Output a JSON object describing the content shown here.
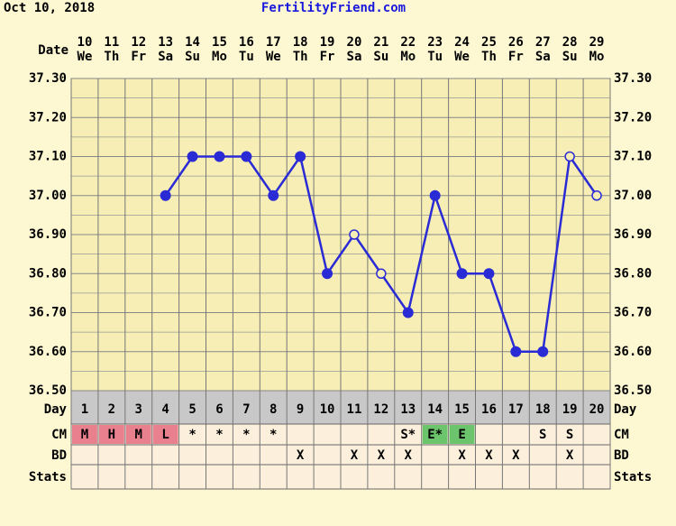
{
  "header": {
    "date": "Oct 10, 2018",
    "site": "FertilityFriend.com"
  },
  "chart_data": {
    "type": "line",
    "x_label": "Date",
    "categories": [
      "10",
      "11",
      "12",
      "13",
      "14",
      "15",
      "16",
      "17",
      "18",
      "19",
      "20",
      "21",
      "22",
      "23",
      "24",
      "25",
      "26",
      "27",
      "28",
      "29"
    ],
    "weekdays": [
      "We",
      "Th",
      "Fr",
      "Sa",
      "Su",
      "Mo",
      "Tu",
      "We",
      "Th",
      "Fr",
      "Sa",
      "Su",
      "Mo",
      "Tu",
      "We",
      "Th",
      "Fr",
      "Sa",
      "Su",
      "Mo"
    ],
    "series": [
      {
        "color": "#2b2bd6",
        "values": [
          null,
          null,
          null,
          37.0,
          37.1,
          37.1,
          37.1,
          37.0,
          37.1,
          36.8,
          36.9,
          36.8,
          36.7,
          37.0,
          36.8,
          36.8,
          36.6,
          36.6,
          37.1,
          37.0
        ],
        "markers": [
          null,
          null,
          null,
          "filled",
          "filled",
          "filled",
          "filled",
          "filled",
          "filled",
          "filled",
          "open",
          "open",
          "filled",
          "filled",
          "filled",
          "filled",
          "filled",
          "filled",
          "open",
          "open"
        ]
      }
    ],
    "ylim": [
      36.5,
      37.3
    ],
    "yticks": [
      {
        "value": 36.5,
        "label": "36.50"
      },
      {
        "value": 36.6,
        "label": "36.60"
      },
      {
        "value": 36.7,
        "label": "36.70"
      },
      {
        "value": 36.8,
        "label": "36.80"
      },
      {
        "value": 36.9,
        "label": "36.90"
      },
      {
        "value": 37.0,
        "label": "37.00"
      },
      {
        "value": 37.1,
        "label": "37.10"
      },
      {
        "value": 37.2,
        "label": "37.20"
      },
      {
        "value": 37.3,
        "label": "37.30"
      }
    ],
    "grid": true,
    "day_label": "Day",
    "cycle_days": [
      1,
      2,
      3,
      4,
      5,
      6,
      7,
      8,
      9,
      10,
      11,
      12,
      13,
      14,
      15,
      16,
      17,
      18,
      19,
      20
    ],
    "cm_label": "CM",
    "cm": [
      "M",
      "H",
      "M",
      "L",
      "*",
      "*",
      "*",
      "*",
      null,
      null,
      null,
      null,
      "S*",
      "E*",
      "E",
      null,
      null,
      "S",
      "S",
      null
    ],
    "cm_colors": [
      "#e8808e",
      "#e8808e",
      "#e8808e",
      "#e8808e",
      null,
      null,
      null,
      null,
      null,
      null,
      null,
      null,
      null,
      "#6cc46c",
      "#6cc46c",
      null,
      null,
      null,
      null,
      null
    ],
    "bd_label": "BD",
    "bd": [
      null,
      null,
      null,
      null,
      null,
      null,
      null,
      null,
      "X",
      null,
      "X",
      "X",
      "X",
      null,
      "X",
      "X",
      "X",
      null,
      "X",
      null
    ],
    "stats_label": "Stats"
  }
}
